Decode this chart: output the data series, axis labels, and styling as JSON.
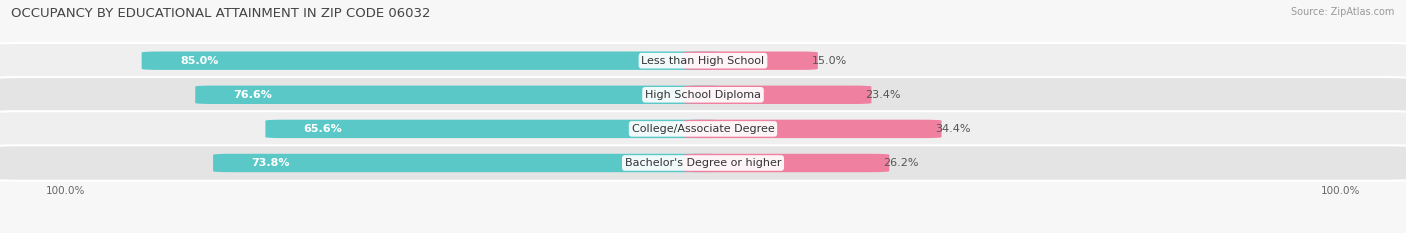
{
  "title": "OCCUPANCY BY EDUCATIONAL ATTAINMENT IN ZIP CODE 06032",
  "source": "Source: ZipAtlas.com",
  "categories": [
    "Less than High School",
    "High School Diploma",
    "College/Associate Degree",
    "Bachelor's Degree or higher"
  ],
  "owner_pct": [
    85.0,
    76.6,
    65.6,
    73.8
  ],
  "renter_pct": [
    15.0,
    23.4,
    34.4,
    26.2
  ],
  "owner_color": "#5BC8C8",
  "renter_color": "#F080A0",
  "row_bg_color_light": "#EFEFEF",
  "row_bg_color_dark": "#E4E4E4",
  "background_color": "#F7F7F7",
  "title_fontsize": 9.5,
  "label_fontsize": 8,
  "pct_fontsize": 8,
  "axis_tick_fontsize": 7.5,
  "legend_fontsize": 8,
  "source_fontsize": 7
}
